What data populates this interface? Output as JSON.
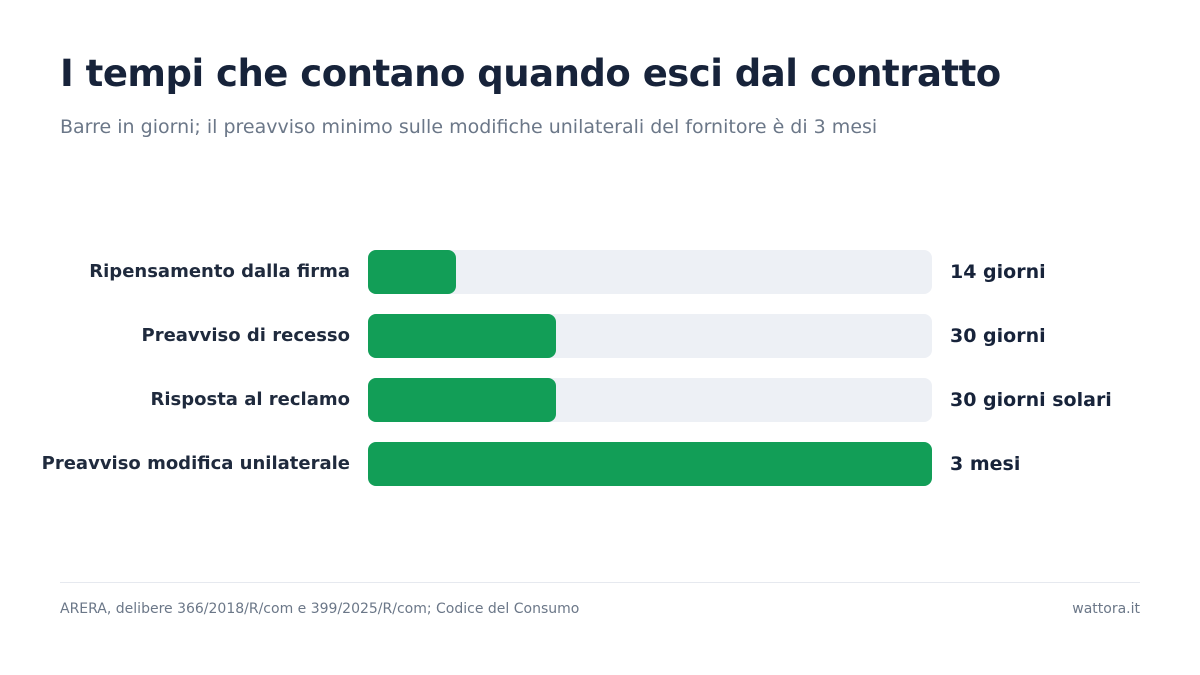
{
  "header": {
    "title": "I tempi che contano quando esci dal contratto",
    "subtitle": "Barre in giorni; il preavviso minimo sulle modifiche unilaterali del fornitore è di 3 mesi"
  },
  "chart_data": {
    "type": "bar",
    "orientation": "horizontal",
    "unit": "giorni",
    "categories": [
      "Ripensamento dalla firma",
      "Preavviso di recesso",
      "Risposta al reclamo",
      "Preavviso modifica unilaterale"
    ],
    "values": [
      14,
      30,
      30,
      90
    ],
    "value_labels": [
      "14 giorni",
      "30 giorni",
      "30 giorni solari",
      "3 mesi"
    ],
    "xlim": [
      0,
      90
    ],
    "grid": false
  },
  "footer": {
    "source": "ARERA, delibere 366/2018/R/com e 399/2025/R/com; Codice del Consumo",
    "brand": "wattora.it"
  },
  "colors": {
    "bar": "#129e57",
    "track": "#edf0f5",
    "title": "#17233a",
    "muted": "#6b7788"
  }
}
